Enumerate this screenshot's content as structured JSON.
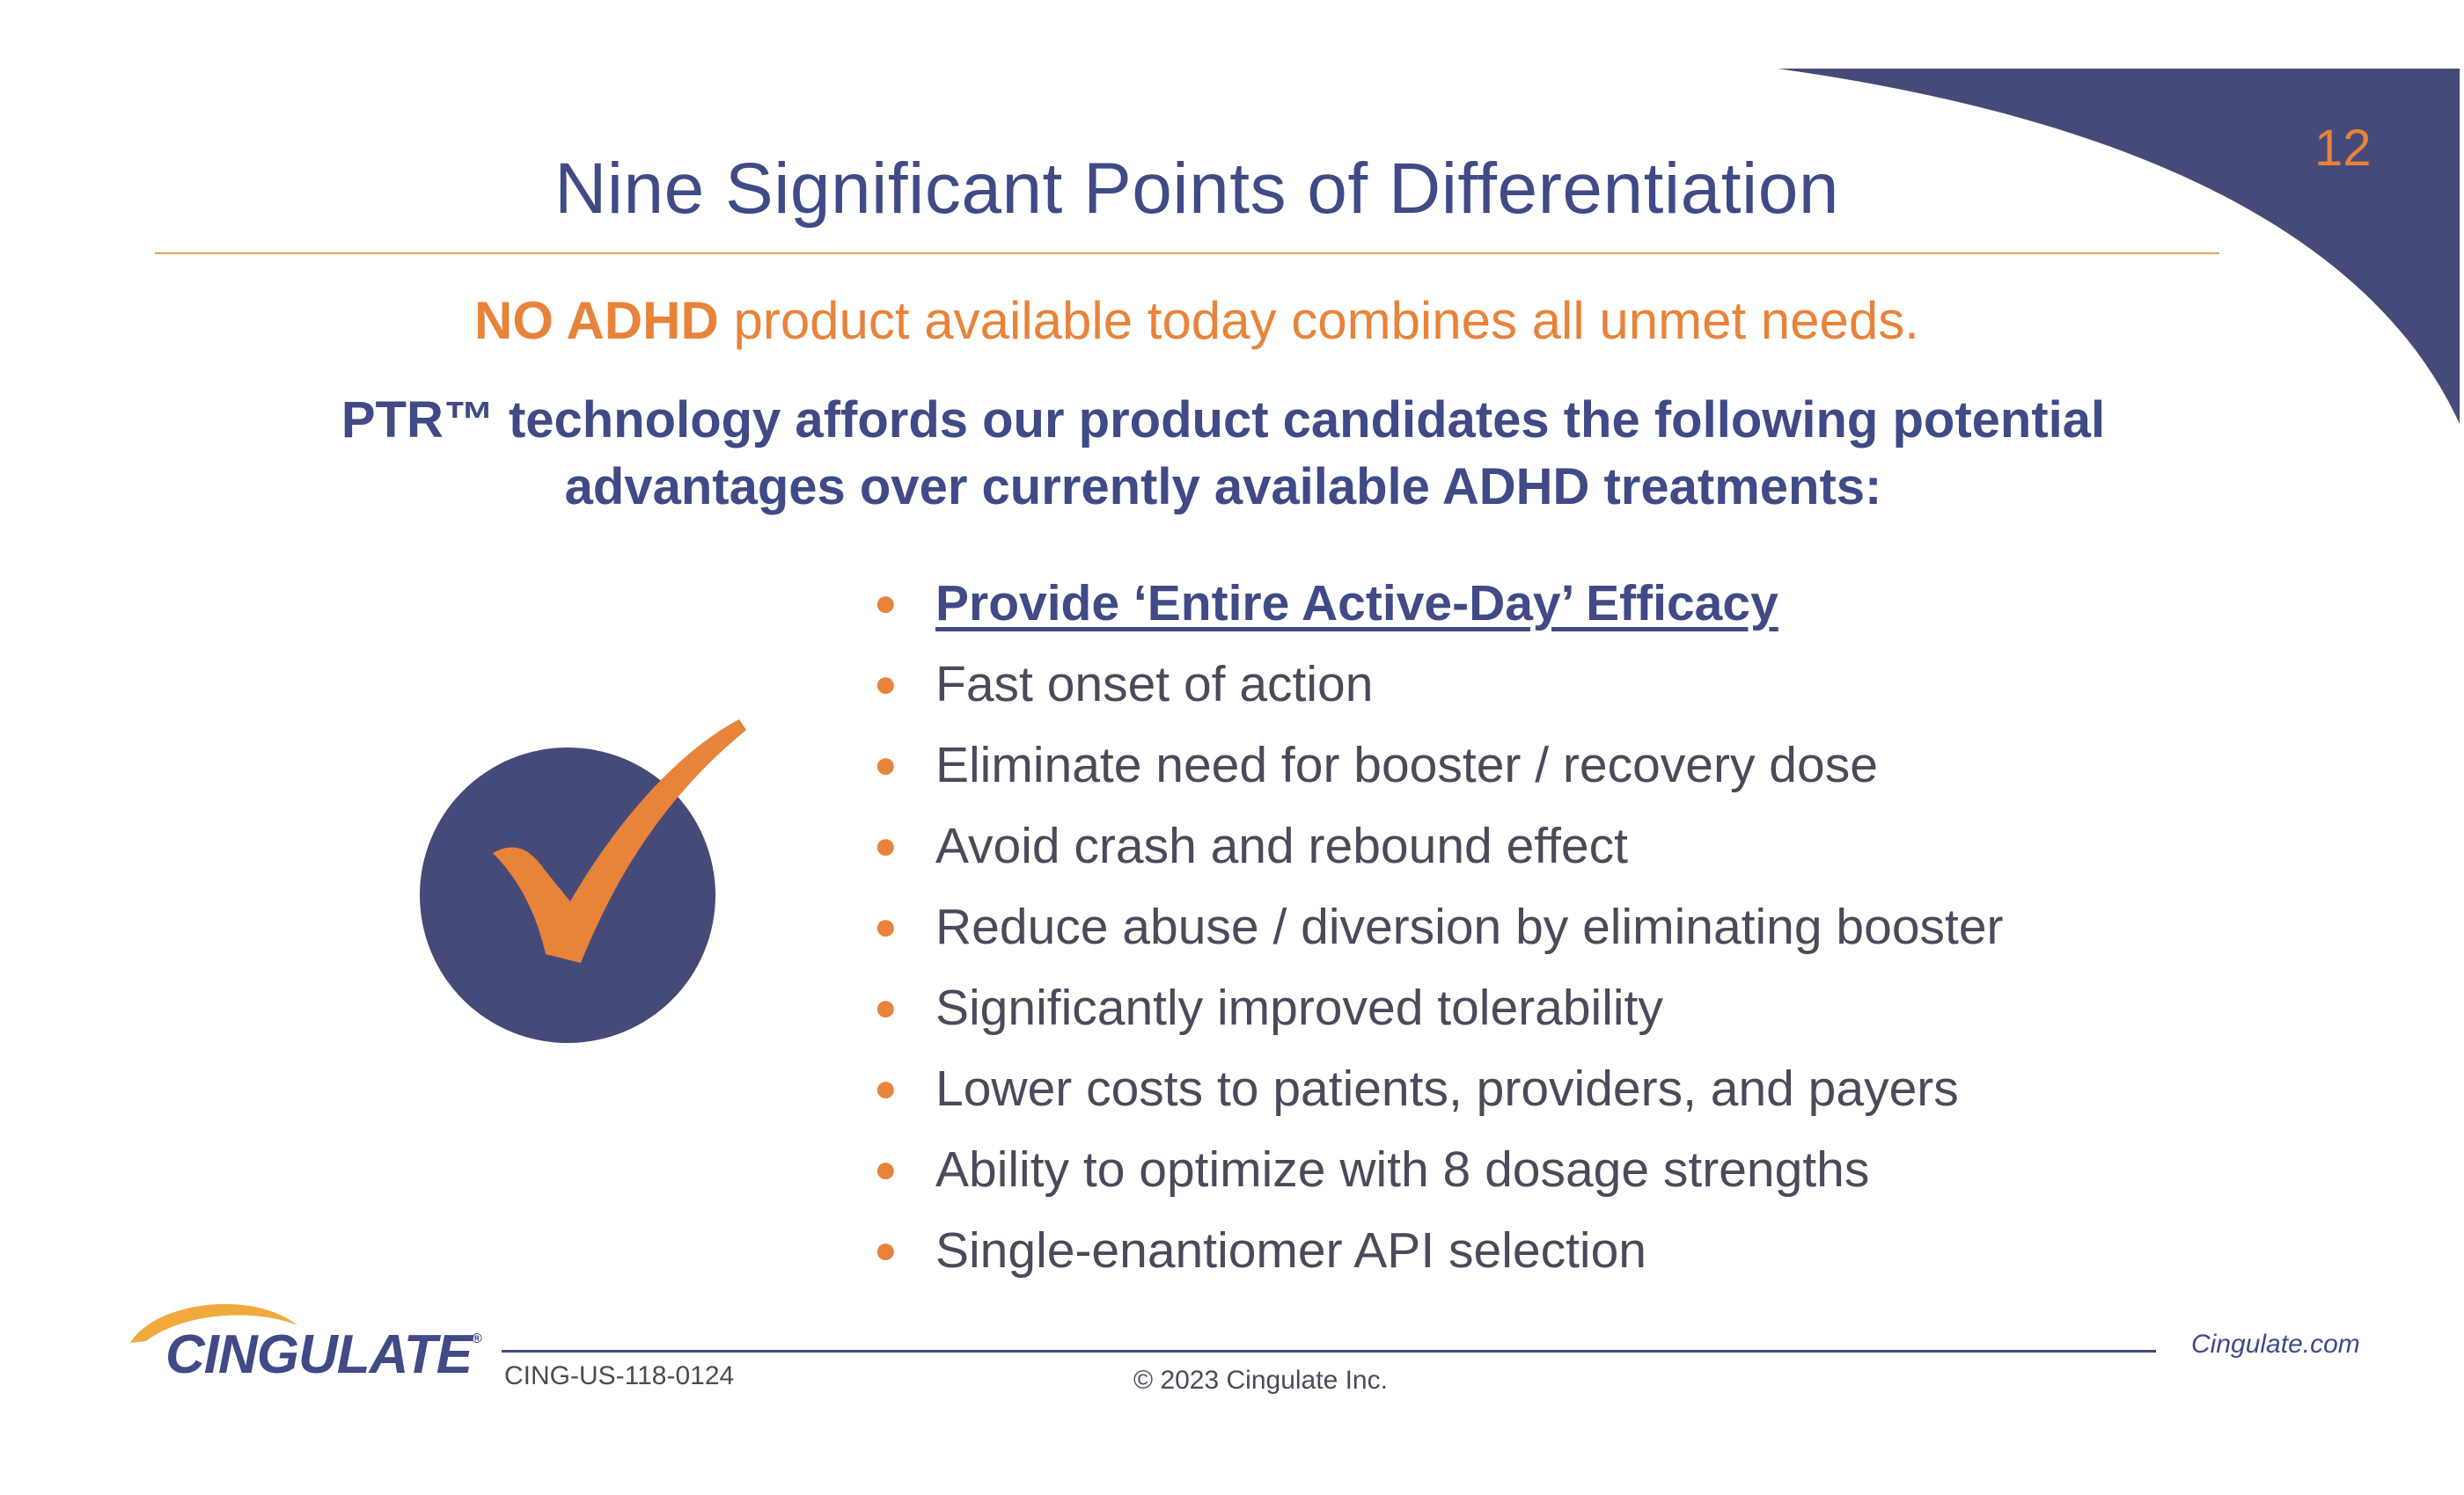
{
  "slide": {
    "page_number": "12",
    "title": "Nine Significant Points of Differentiation",
    "subtitle": {
      "strong": "NO ADHD",
      "rest": " product available today combines all unmet needs."
    },
    "lead": "PTR™ technology affords our product candidates the following potential advantages over currently available ADHD treatments:",
    "bullets": [
      "Provide ‘Entire Active-Day’ Efficacy",
      "Fast onset of action",
      "Eliminate need for booster / recovery dose",
      "Avoid crash and rebound effect",
      "Reduce abuse / diversion by eliminating booster",
      "Significantly improved tolerability",
      "Lower costs to patients, providers, and payers",
      "Ability to optimize with 8 dosage strengths",
      "Single-enantiomer API selection"
    ],
    "check_icon": "checkmark-in-circle-icon"
  },
  "footer": {
    "logo_text": "CINGULATE",
    "logo_mark": "®",
    "doc_code": "CING-US-118-0124",
    "copyright": "© 2023 Cingulate Inc.",
    "site": "Cingulate.com"
  },
  "colors": {
    "navy": "#3f4a86",
    "orange": "#e8833a",
    "text_gray": "#4a4a5a",
    "swoosh": "#454a78"
  }
}
